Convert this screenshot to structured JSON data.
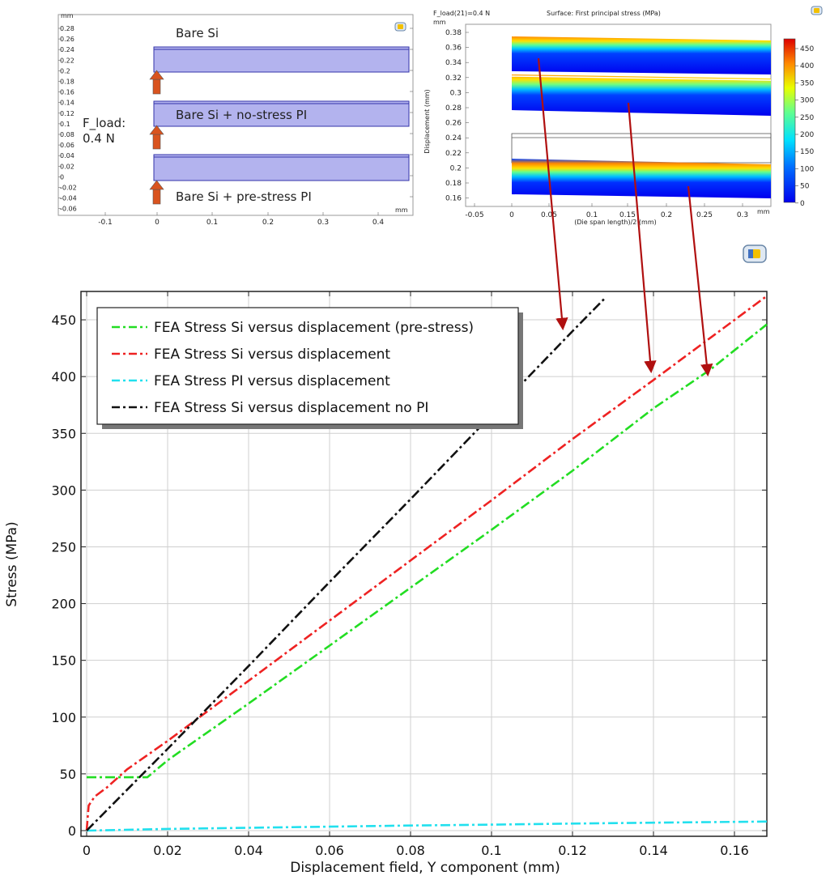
{
  "top_left_panel": {
    "y_unit": "mm",
    "x_unit": "mm",
    "y_ticks": [
      "0.28",
      "0.26",
      "0.24",
      "0.22",
      "0.2",
      "0.18",
      "0.16",
      "0.14",
      "0.12",
      "0.1",
      "0.08",
      "0.06",
      "0.04",
      "0.02",
      "0",
      "-0.02",
      "-0.04",
      "-0.06"
    ],
    "x_ticks": [
      "-0.1",
      "0",
      "0.1",
      "0.2",
      "0.3",
      "0.4"
    ],
    "labels": {
      "bare_si": "Bare Si",
      "no_stress": "Bare Si + no-stress PI",
      "pre_stress": "Bare Si + pre-stress PI",
      "load_line1": "F_load:",
      "load_line2": "0.4 N"
    },
    "colors": {
      "layer_fill": "#b3b3ee",
      "layer_edge": "#3333aa",
      "arrow": "#d9531e"
    }
  },
  "top_right_panel": {
    "title_left": "F_load(21)=0.4 N",
    "title_right": "Surface: First principal stress (MPa)",
    "y_unit": "mm",
    "x_unit": "mm",
    "y_label": "Displacement (mm)",
    "x_label": "(Die span length)/2 (mm)",
    "y_ticks": [
      "0.38",
      "0.36",
      "0.34",
      "0.32",
      "0.3",
      "0.28",
      "0.26",
      "0.24",
      "0.22",
      "0.2",
      "0.18",
      "0.16"
    ],
    "x_ticks": [
      "-0.05",
      "0",
      "0.05",
      "0.1",
      "0.15",
      "0.2",
      "0.25",
      "0.3"
    ],
    "colorbar_ticks": [
      "450",
      "400",
      "350",
      "300",
      "250",
      "200",
      "150",
      "100",
      "50",
      "0"
    ]
  },
  "arrow_color": "#b01010",
  "chart_data": {
    "type": "line",
    "xlabel": "Displacement field, Y component (mm)",
    "ylabel": "Stress (MPa)",
    "xlim": [
      0,
      0.168
    ],
    "ylim": [
      -5,
      475
    ],
    "x_ticks": [
      0,
      0.02,
      0.04,
      0.06,
      0.08,
      0.1,
      0.12,
      0.14,
      0.16
    ],
    "x_tick_labels": [
      "0",
      "0.02",
      "0.04",
      "0.06",
      "0.08",
      "0.1",
      "0.12",
      "0.14",
      "0.16"
    ],
    "y_ticks": [
      0,
      50,
      100,
      150,
      200,
      250,
      300,
      350,
      400,
      450
    ],
    "y_tick_labels": [
      "0",
      "50",
      "100",
      "150",
      "200",
      "250",
      "300",
      "350",
      "400",
      "450"
    ],
    "grid": true,
    "legend_position": "top-left",
    "series": [
      {
        "name": "FEA Stress Si versus displacement (pre-stress)",
        "color": "#22dd22",
        "x": [
          0,
          0.005,
          0.01,
          0.015,
          0.02,
          0.04,
          0.06,
          0.08,
          0.1,
          0.12,
          0.14,
          0.154,
          0.168
        ],
        "y": [
          47,
          47,
          47,
          47,
          62,
          112,
          163,
          214,
          265,
          317,
          372,
          406,
          446
        ]
      },
      {
        "name": "FEA Stress Si versus displacement",
        "color": "#ee2222",
        "x": [
          0,
          0.0005,
          0.002,
          0.005,
          0.01,
          0.02,
          0.04,
          0.06,
          0.08,
          0.1,
          0.12,
          0.14,
          0.168
        ],
        "y": [
          0,
          22,
          30,
          38,
          54,
          79,
          132,
          185,
          238,
          291,
          345,
          397,
          471
        ]
      },
      {
        "name": "FEA Stress PI versus displacement",
        "color": "#22e0ee",
        "x": [
          0,
          0.02,
          0.04,
          0.06,
          0.08,
          0.1,
          0.12,
          0.14,
          0.168
        ],
        "y": [
          0,
          1.5,
          2.5,
          3.5,
          4.5,
          5.3,
          6.2,
          7,
          8
        ]
      },
      {
        "name": "FEA Stress Si versus displacement no PI",
        "color": "#111111",
        "x": [
          0,
          0.02,
          0.04,
          0.06,
          0.08,
          0.1,
          0.12,
          0.128
        ],
        "y": [
          0,
          72,
          145,
          219,
          292,
          366,
          440,
          469
        ]
      }
    ]
  }
}
